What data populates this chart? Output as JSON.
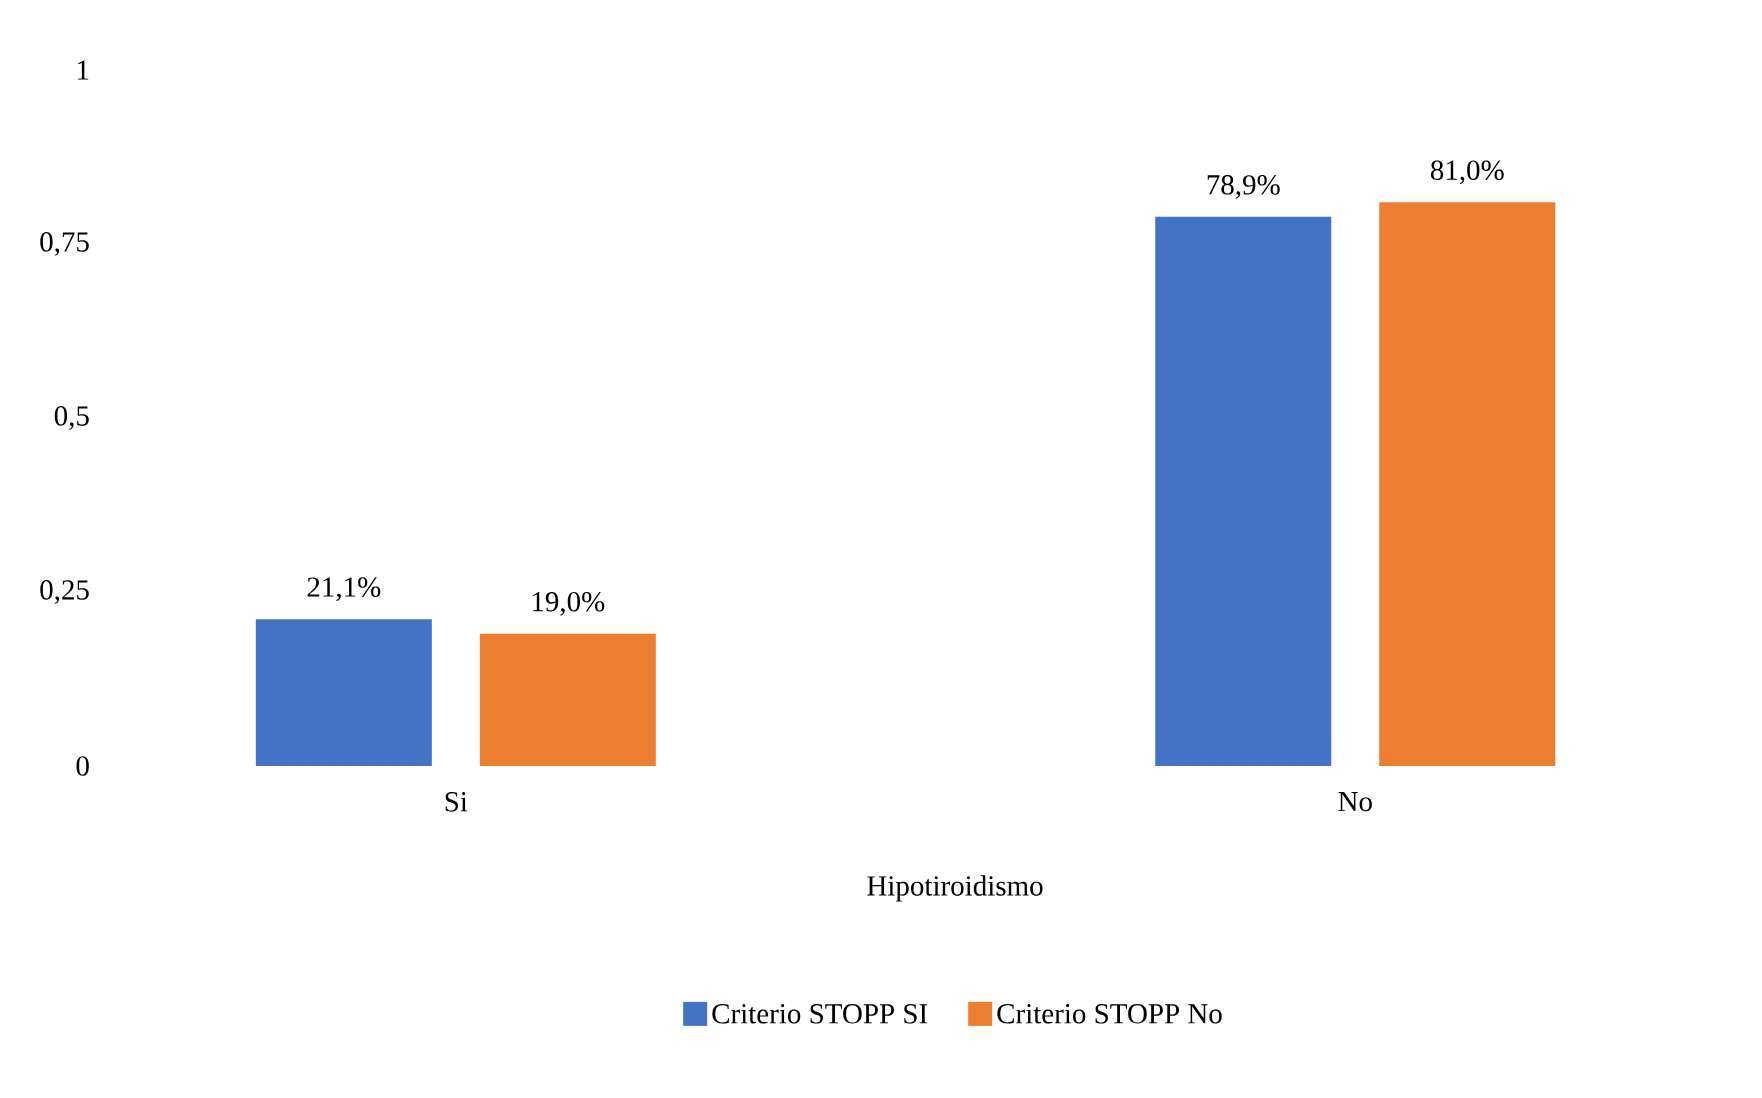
{
  "chart_data": {
    "type": "bar",
    "xlabel": "Hipotiroidismo",
    "categories": [
      "Si",
      "No"
    ],
    "series": [
      {
        "name": "Criterio STOPP SI",
        "color": "#4472c4",
        "values": [
          0.211,
          0.789
        ],
        "value_labels": [
          "21,1%",
          "78,9%"
        ]
      },
      {
        "name": "Criterio STOPP No",
        "color": "#ed7d31",
        "values": [
          0.19,
          0.81
        ],
        "value_labels": [
          "19,0%",
          "81,0%"
        ]
      }
    ],
    "ylim": [
      0,
      1
    ],
    "yticks": [
      0,
      {
        "value": 0.25,
        "label": "0,25"
      },
      {
        "value": 0.5,
        "label": "0,5"
      },
      {
        "value": 0.75,
        "label": "0,75"
      },
      1
    ],
    "legend": "bottom"
  }
}
